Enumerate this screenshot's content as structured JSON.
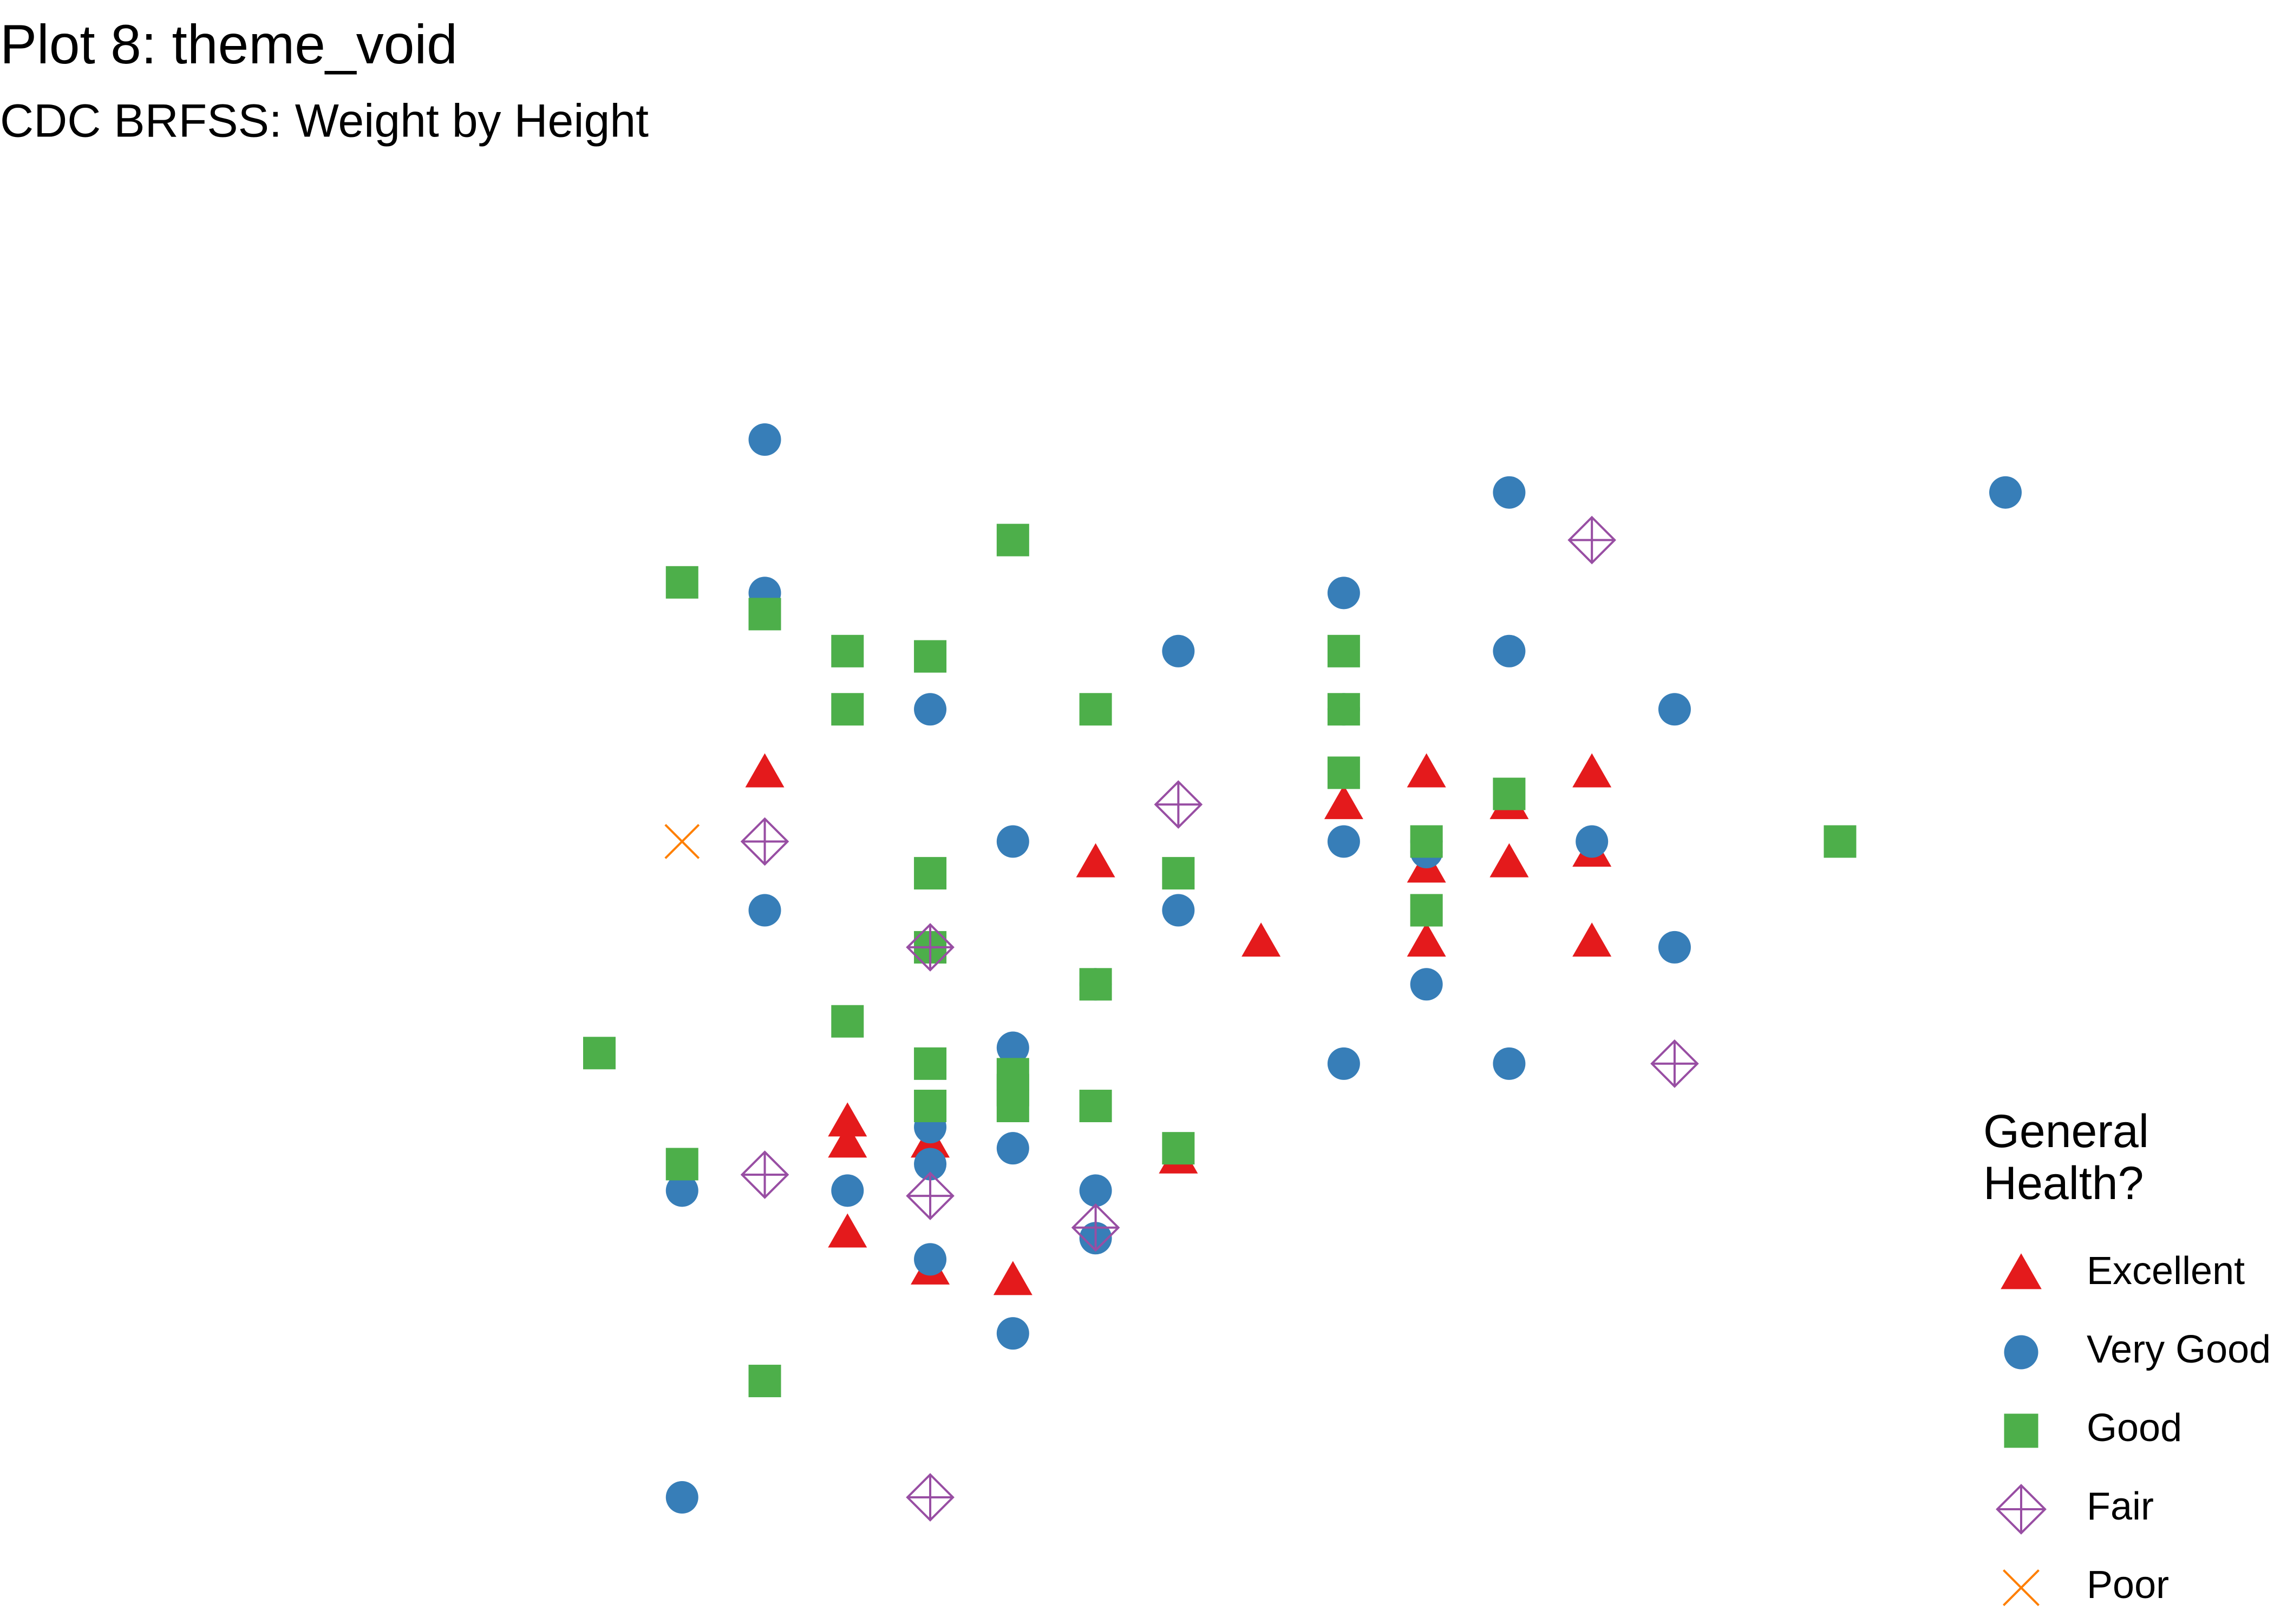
{
  "chart_data": {
    "type": "scatter",
    "title": "Plot 8: theme_void",
    "subtitle": "CDC BRFSS: Weight by Height",
    "legend_title": "General Health?",
    "legend": "right",
    "grid": false,
    "xlim": [
      60,
      77
    ],
    "ylim": [
      100,
      300
    ],
    "series": [
      {
        "name": "Excellent",
        "color": "#E41A1C",
        "shape": "triangle",
        "x": [
          62,
          63,
          63,
          63,
          64,
          64,
          65,
          66,
          67,
          68,
          69,
          70,
          70,
          70,
          71,
          71,
          72,
          72,
          72
        ],
        "y": [
          237,
          171,
          167,
          150,
          167,
          143,
          141,
          220,
          164,
          205,
          231,
          237,
          219,
          205,
          231,
          220,
          237,
          222,
          205
        ]
      },
      {
        "name": "Very Good",
        "color": "#377EB8",
        "shape": "circle",
        "x": [
          62,
          71,
          77,
          62,
          69,
          67,
          71,
          64,
          69,
          73,
          65,
          69,
          70,
          70,
          72,
          62,
          67,
          73,
          70,
          66,
          65,
          69,
          71,
          64,
          64,
          65,
          61,
          63,
          66,
          66,
          64,
          65,
          61
        ],
        "y": [
          300,
          290,
          290,
          271,
          271,
          260,
          260,
          249,
          249,
          249,
          224,
          224,
          224,
          222,
          224,
          211,
          211,
          204,
          197,
          197,
          185,
          182,
          182,
          170,
          163,
          166,
          158,
          158,
          158,
          149,
          145,
          131,
          100
        ]
      },
      {
        "name": "Good",
        "color": "#4DAF4A",
        "shape": "square",
        "x": [
          65,
          61,
          62,
          63,
          64,
          69,
          63,
          66,
          69,
          69,
          71,
          70,
          75,
          64,
          67,
          70,
          64,
          66,
          63,
          60,
          64,
          65,
          65,
          65,
          64,
          66,
          67,
          61,
          62
        ],
        "y": [
          281,
          273,
          267,
          260,
          259,
          260,
          249,
          249,
          249,
          237,
          233,
          224,
          224,
          218,
          218,
          211,
          204,
          197,
          190,
          184,
          182,
          180,
          177,
          174,
          174,
          174,
          166,
          163,
          122
        ]
      },
      {
        "name": "Fair",
        "color": "#984EA3",
        "shape": "diamond-plus",
        "x": [
          72,
          67,
          62,
          64,
          73,
          62,
          64,
          66,
          64
        ],
        "y": [
          281,
          231,
          224,
          204,
          182,
          161,
          157,
          151,
          100
        ]
      },
      {
        "name": "Poor",
        "color": "#FF7F00",
        "shape": "cross",
        "x": [
          61
        ],
        "y": [
          224
        ]
      }
    ]
  }
}
